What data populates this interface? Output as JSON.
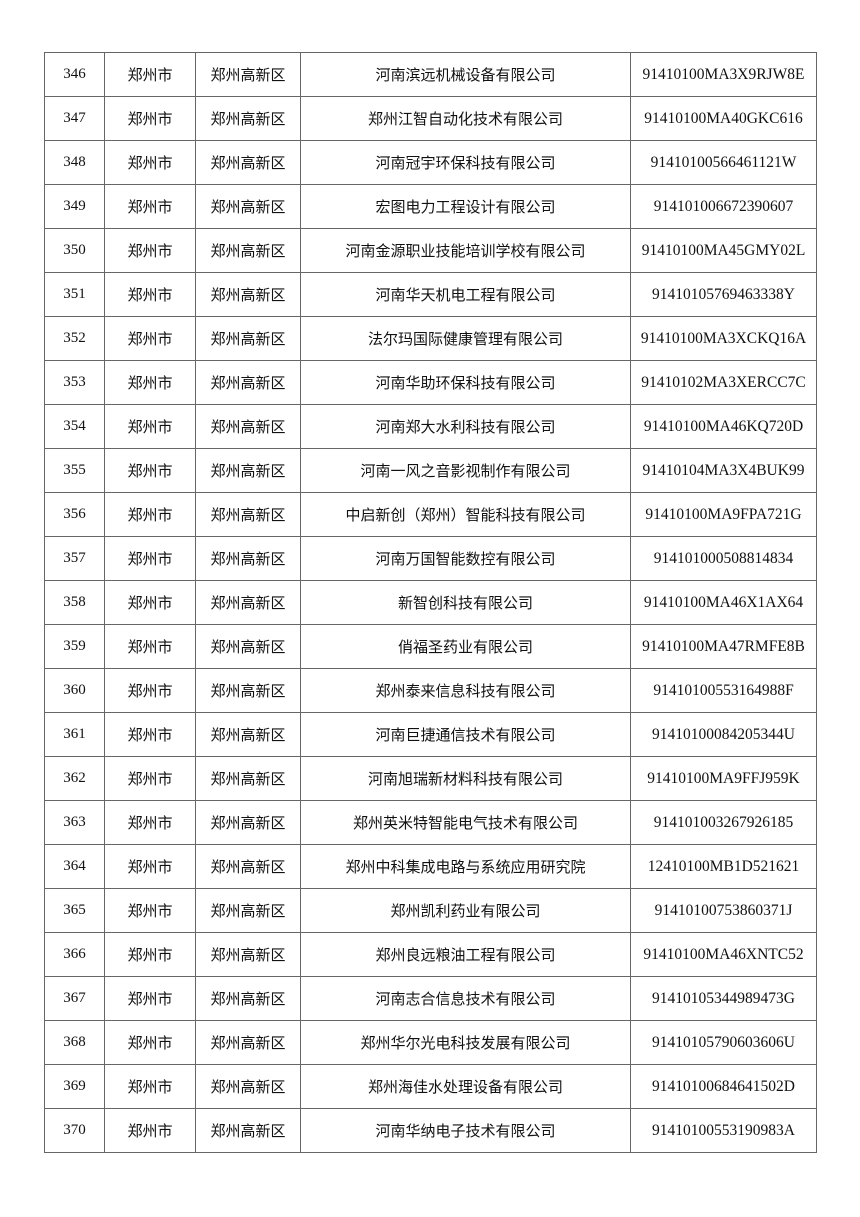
{
  "table": {
    "rows": [
      [
        "346",
        "郑州市",
        "郑州高新区",
        "河南滨远机械设备有限公司",
        "91410100MA3X9RJW8E"
      ],
      [
        "347",
        "郑州市",
        "郑州高新区",
        "郑州江智自动化技术有限公司",
        "91410100MA40GKC616"
      ],
      [
        "348",
        "郑州市",
        "郑州高新区",
        "河南冠宇环保科技有限公司",
        "91410100566461121W"
      ],
      [
        "349",
        "郑州市",
        "郑州高新区",
        "宏图电力工程设计有限公司",
        "914101006672390607"
      ],
      [
        "350",
        "郑州市",
        "郑州高新区",
        "河南金源职业技能培训学校有限公司",
        "91410100MA45GMY02L"
      ],
      [
        "351",
        "郑州市",
        "郑州高新区",
        "河南华天机电工程有限公司",
        "91410105769463338Y"
      ],
      [
        "352",
        "郑州市",
        "郑州高新区",
        "法尔玛国际健康管理有限公司",
        "91410100MA3XCKQ16A"
      ],
      [
        "353",
        "郑州市",
        "郑州高新区",
        "河南华助环保科技有限公司",
        "91410102MA3XERCC7C"
      ],
      [
        "354",
        "郑州市",
        "郑州高新区",
        "河南郑大水利科技有限公司",
        "91410100MA46KQ720D"
      ],
      [
        "355",
        "郑州市",
        "郑州高新区",
        "河南一风之音影视制作有限公司",
        "91410104MA3X4BUK99"
      ],
      [
        "356",
        "郑州市",
        "郑州高新区",
        "中启新创（郑州）智能科技有限公司",
        "91410100MA9FPA721G"
      ],
      [
        "357",
        "郑州市",
        "郑州高新区",
        "河南万国智能数控有限公司",
        "914101000508814834"
      ],
      [
        "358",
        "郑州市",
        "郑州高新区",
        "新智创科技有限公司",
        "91410100MA46X1AX64"
      ],
      [
        "359",
        "郑州市",
        "郑州高新区",
        "俏福圣药业有限公司",
        "91410100MA47RMFE8B"
      ],
      [
        "360",
        "郑州市",
        "郑州高新区",
        "郑州泰来信息科技有限公司",
        "91410100553164988F"
      ],
      [
        "361",
        "郑州市",
        "郑州高新区",
        "河南巨捷通信技术有限公司",
        "91410100084205344U"
      ],
      [
        "362",
        "郑州市",
        "郑州高新区",
        "河南旭瑞新材料科技有限公司",
        "91410100MA9FFJ959K"
      ],
      [
        "363",
        "郑州市",
        "郑州高新区",
        "郑州英米特智能电气技术有限公司",
        "914101003267926185"
      ],
      [
        "364",
        "郑州市",
        "郑州高新区",
        "郑州中科集成电路与系统应用研究院",
        "12410100MB1D521621"
      ],
      [
        "365",
        "郑州市",
        "郑州高新区",
        "郑州凯利药业有限公司",
        "91410100753860371J"
      ],
      [
        "366",
        "郑州市",
        "郑州高新区",
        "郑州良远粮油工程有限公司",
        "91410100MA46XNTC52"
      ],
      [
        "367",
        "郑州市",
        "郑州高新区",
        "河南志合信息技术有限公司",
        "91410105344989473G"
      ],
      [
        "368",
        "郑州市",
        "郑州高新区",
        "郑州华尔光电科技发展有限公司",
        "91410105790603606U"
      ],
      [
        "369",
        "郑州市",
        "郑州高新区",
        "郑州海佳水处理设备有限公司",
        "91410100684641502D"
      ],
      [
        "370",
        "郑州市",
        "郑州高新区",
        "河南华纳电子技术有限公司",
        "91410100553190983A"
      ]
    ]
  }
}
